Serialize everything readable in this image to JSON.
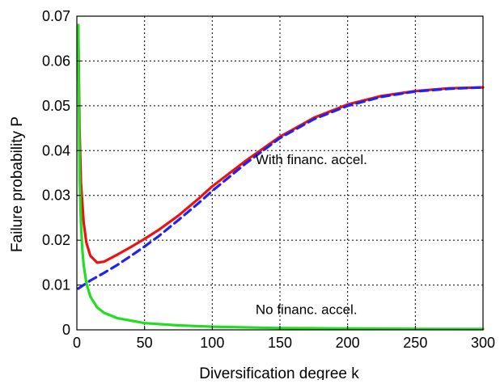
{
  "chart_data": {
    "type": "line",
    "title": "",
    "xlabel": "Diversification degree k",
    "ylabel": "Failure probability P",
    "xlim": [
      0,
      300
    ],
    "ylim": [
      0,
      0.07
    ],
    "xticks": [
      0,
      50,
      100,
      150,
      200,
      250,
      300
    ],
    "xtick_labels": [
      "0",
      "50",
      "100",
      "150",
      "200",
      "250",
      "300"
    ],
    "yticks": [
      0,
      0.01,
      0.02,
      0.03,
      0.04,
      0.05,
      0.06,
      0.07
    ],
    "ytick_labels": [
      "0",
      "0.01",
      "0.02",
      "0.03",
      "0.04",
      "0.05",
      "0.06",
      "0.07"
    ],
    "grid": true,
    "grid_style": "dotted",
    "series": [
      {
        "color": "#ee1111",
        "style": "solid",
        "x": [
          1,
          2,
          3,
          5,
          7,
          10,
          15,
          20,
          25,
          30,
          40,
          50,
          60,
          75,
          90,
          100,
          125,
          150,
          175,
          200,
          225,
          250,
          275,
          300
        ],
        "y": [
          0.068,
          0.045,
          0.033,
          0.024,
          0.0195,
          0.0165,
          0.015,
          0.0152,
          0.016,
          0.0168,
          0.0185,
          0.0203,
          0.0222,
          0.0255,
          0.0293,
          0.032,
          0.0378,
          0.0431,
          0.0473,
          0.0503,
          0.0522,
          0.0533,
          0.0539,
          0.0541
        ]
      },
      {
        "color": "#2222ee",
        "style": "dashed",
        "x": [
          1,
          10,
          20,
          30,
          40,
          50,
          60,
          75,
          90,
          100,
          125,
          150,
          175,
          200,
          225,
          250,
          275,
          300
        ],
        "y": [
          0.0092,
          0.011,
          0.0127,
          0.0145,
          0.0165,
          0.0186,
          0.0208,
          0.0245,
          0.0283,
          0.031,
          0.0372,
          0.0428,
          0.047,
          0.05,
          0.052,
          0.0532,
          0.0538,
          0.0541
        ]
      },
      {
        "color": "#22dd22",
        "style": "solid",
        "x": [
          1,
          2,
          3,
          4,
          5,
          7,
          10,
          15,
          20,
          30,
          50,
          75,
          100,
          150,
          200,
          250,
          300
        ],
        "y": [
          0.068,
          0.035,
          0.024,
          0.018,
          0.0145,
          0.0105,
          0.0074,
          0.005,
          0.0038,
          0.0026,
          0.0015,
          0.001,
          0.0007,
          0.0004,
          0.0003,
          0.00022,
          0.00018
        ]
      }
    ],
    "annotations": [
      {
        "text": "With financ. accel.",
        "x": 132,
        "y": 0.037
      },
      {
        "text": "No financ. accel.",
        "x": 132,
        "y": 0.0035
      }
    ]
  }
}
